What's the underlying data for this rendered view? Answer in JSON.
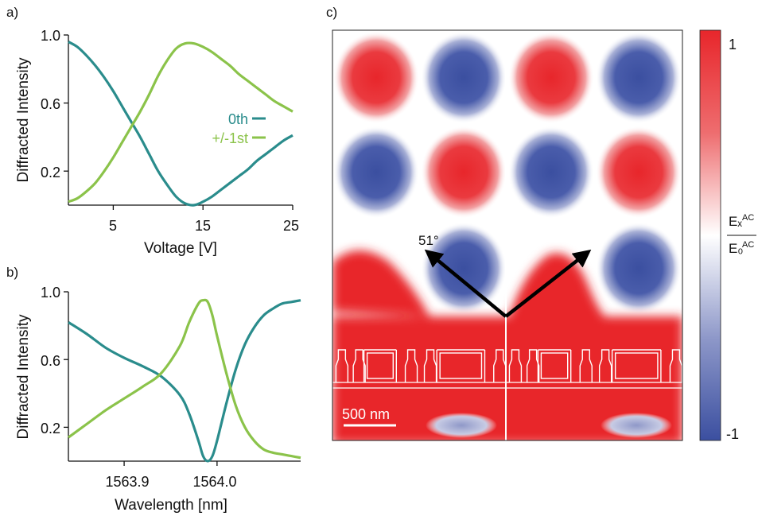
{
  "colors": {
    "zeroth": "#2a8c8c",
    "first": "#8bc34a",
    "red": "#e8262b",
    "blue": "#3b4fa0"
  },
  "chart_data": [
    {
      "panel": "a)",
      "type": "line",
      "xlabel": "Voltage [V]",
      "ylabel": "Diffracted Intensity",
      "xlim": [
        0,
        25
      ],
      "ylim": [
        0,
        1.0
      ],
      "xticks": [
        5,
        15,
        25
      ],
      "yticks": [
        0.2,
        0.6,
        1.0
      ],
      "ytick_labels": [
        "0.2",
        "0.6",
        "1.0"
      ],
      "legend_position": "right",
      "series": [
        {
          "name": "0th",
          "color": "#2a8c8c",
          "x": [
            0,
            1,
            2,
            3,
            4,
            5,
            6,
            7,
            8,
            9,
            10,
            11,
            12,
            13,
            14,
            15,
            16,
            17,
            18,
            19,
            20,
            21,
            22,
            23,
            24,
            25
          ],
          "y": [
            0.96,
            0.93,
            0.88,
            0.82,
            0.75,
            0.67,
            0.58,
            0.49,
            0.4,
            0.3,
            0.2,
            0.12,
            0.05,
            0.01,
            0.0,
            0.02,
            0.05,
            0.09,
            0.13,
            0.17,
            0.21,
            0.26,
            0.3,
            0.34,
            0.38,
            0.41
          ]
        },
        {
          "name": "+/-1st",
          "color": "#8bc34a",
          "x": [
            0,
            1,
            2,
            3,
            4,
            5,
            6,
            7,
            8,
            9,
            10,
            11,
            12,
            13,
            14,
            15,
            16,
            17,
            18,
            19,
            20,
            21,
            22,
            23,
            24,
            25
          ],
          "y": [
            0.02,
            0.04,
            0.08,
            0.13,
            0.2,
            0.28,
            0.37,
            0.46,
            0.55,
            0.65,
            0.76,
            0.85,
            0.92,
            0.95,
            0.95,
            0.93,
            0.9,
            0.86,
            0.82,
            0.77,
            0.73,
            0.69,
            0.65,
            0.61,
            0.58,
            0.55
          ]
        }
      ]
    },
    {
      "panel": "b)",
      "type": "line",
      "xlabel": "Wavelength [nm]",
      "ylabel": "Diffracted Intensity",
      "xlim": [
        1563.84,
        1564.09
      ],
      "ylim": [
        0,
        1.0
      ],
      "xticks": [
        1563.9,
        1564.0
      ],
      "xtick_labels": [
        "1563.9",
        "1564.0"
      ],
      "yticks": [
        0.2,
        0.6,
        1.0
      ],
      "ytick_labels": [
        "0.2",
        "0.6",
        "1.0"
      ],
      "series": [
        {
          "name": "",
          "color": "#2a8c8c",
          "x": [
            1563.84,
            1563.86,
            1563.88,
            1563.9,
            1563.92,
            1563.94,
            1563.96,
            1563.97,
            1563.98,
            1563.985,
            1563.99,
            1563.995,
            1564.0,
            1564.01,
            1564.02,
            1564.03,
            1564.04,
            1564.05,
            1564.06,
            1564.07,
            1564.08,
            1564.09
          ],
          "y": [
            0.82,
            0.75,
            0.67,
            0.61,
            0.56,
            0.5,
            0.39,
            0.28,
            0.12,
            0.03,
            0.0,
            0.03,
            0.12,
            0.34,
            0.54,
            0.69,
            0.79,
            0.86,
            0.9,
            0.93,
            0.94,
            0.95
          ]
        },
        {
          "name": "",
          "color": "#8bc34a",
          "x": [
            1563.84,
            1563.86,
            1563.88,
            1563.9,
            1563.92,
            1563.94,
            1563.96,
            1563.97,
            1563.98,
            1563.985,
            1563.99,
            1563.995,
            1564.0,
            1564.01,
            1564.02,
            1564.03,
            1564.04,
            1564.05,
            1564.06,
            1564.07,
            1564.08,
            1564.09
          ],
          "y": [
            0.14,
            0.22,
            0.3,
            0.37,
            0.44,
            0.52,
            0.68,
            0.82,
            0.93,
            0.95,
            0.94,
            0.86,
            0.74,
            0.52,
            0.33,
            0.2,
            0.12,
            0.07,
            0.05,
            0.04,
            0.03,
            0.02
          ]
        }
      ]
    },
    {
      "panel": "c)",
      "type": "heatmap",
      "description_visible": {
        "angle_label": "51°",
        "scale_bar_label": "500 nm",
        "colorbar_max": "1",
        "colorbar_min": "-1",
        "colorbar_title_numerator": "Eₓ",
        "colorbar_title_numerator_sup": "AC",
        "colorbar_title_denominator": "E₀",
        "colorbar_title_denominator_sup": "AC"
      },
      "grid_signs": [
        [
          1,
          -1,
          1,
          -1
        ],
        [
          -1,
          1,
          -1,
          1
        ],
        [
          0,
          -1,
          0,
          -1
        ]
      ]
    }
  ]
}
